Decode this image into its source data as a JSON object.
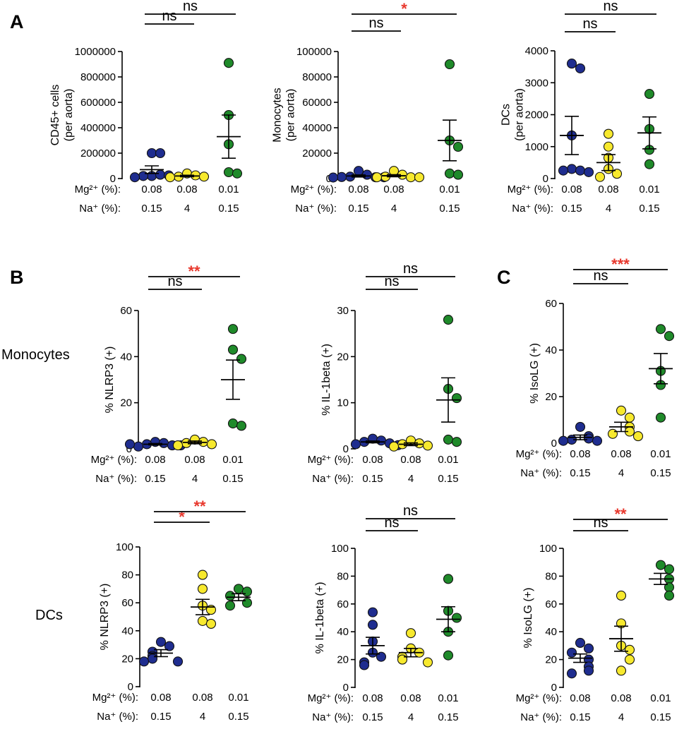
{
  "figure": {
    "panel_letters": [
      "A",
      "B",
      "C"
    ],
    "row_labels": [
      "Monocytes",
      "DCs"
    ]
  },
  "styles": {
    "group_colors": [
      "#1f2d8f",
      "#f7e92e",
      "#1f8a2a"
    ],
    "sig_color": "#e8382d",
    "ns_color": "#000000",
    "axis_color": "#000000"
  },
  "conditions": {
    "mg_label": "Mg²⁺ (%):",
    "na_label": "Na⁺ (%):",
    "mg_values": [
      "0.08",
      "0.08",
      "0.01"
    ],
    "na_values": [
      "0.15",
      "4",
      "0.15"
    ]
  },
  "chart_data": [
    {
      "type": "scatter",
      "panel": "A",
      "ylabel": "CD45+ cells\n(per aorta)",
      "ylim": [
        0,
        1000000
      ],
      "yticks": [
        0,
        200000,
        400000,
        600000,
        800000,
        1000000
      ],
      "ytick_labels": [
        "0",
        "200000",
        "400000",
        "600000",
        "800000",
        "1000000"
      ],
      "groups": [
        {
          "values": [
            200000,
            200000,
            20000,
            30000,
            20000,
            25000,
            10000
          ],
          "mean": 70000,
          "sem": 30000
        },
        {
          "values": [
            40000,
            25000,
            15000,
            15000,
            10000
          ],
          "mean": 20000,
          "sem": 6000
        },
        {
          "values": [
            910000,
            500000,
            270000,
            50000,
            40000
          ],
          "mean": 330000,
          "sem": 170000
        }
      ],
      "comparisons": [
        {
          "pair": [
            0,
            1
          ],
          "label": "ns",
          "significant": false
        },
        {
          "pair": [
            0,
            2
          ],
          "label": "ns",
          "significant": false
        }
      ]
    },
    {
      "type": "scatter",
      "panel": "A",
      "ylabel": "Monocytes\n(per aorta)",
      "ylim": [
        0,
        100000
      ],
      "yticks": [
        0,
        20000,
        40000,
        60000,
        80000,
        100000
      ],
      "ytick_labels": [
        "0",
        "20000",
        "40000",
        "60000",
        "80000",
        "100000"
      ],
      "groups": [
        {
          "values": [
            6000,
            3000,
            1500,
            1000,
            1200,
            1000,
            800
          ],
          "mean": 2000,
          "sem": 800
        },
        {
          "values": [
            6000,
            3000,
            1500,
            1000,
            1000,
            1000
          ],
          "mean": 2200,
          "sem": 800
        },
        {
          "values": [
            90000,
            30000,
            25000,
            4000,
            3000
          ],
          "mean": 30000,
          "sem": 16000
        }
      ],
      "comparisons": [
        {
          "pair": [
            0,
            1
          ],
          "label": "ns",
          "significant": false
        },
        {
          "pair": [
            0,
            2
          ],
          "label": "*",
          "significant": true
        }
      ]
    },
    {
      "type": "scatter",
      "panel": "A",
      "ylabel": "DCs\n(per aorta)",
      "ylim": [
        0,
        4000
      ],
      "yticks": [
        0,
        1000,
        2000,
        3000,
        4000
      ],
      "ytick_labels": [
        "0",
        "1000",
        "2000",
        "3000",
        "4000"
      ],
      "groups": [
        {
          "values": [
            3600,
            3450,
            1350,
            300,
            250,
            250,
            200
          ],
          "mean": 1350,
          "sem": 600
        },
        {
          "values": [
            1400,
            1000,
            650,
            300,
            150,
            50
          ],
          "mean": 500,
          "sem": 250
        },
        {
          "values": [
            2650,
            1550,
            900,
            450
          ],
          "mean": 1430,
          "sem": 500
        }
      ],
      "comparisons": [
        {
          "pair": [
            0,
            1
          ],
          "label": "ns",
          "significant": false
        },
        {
          "pair": [
            0,
            2
          ],
          "label": "ns",
          "significant": false
        }
      ]
    },
    {
      "type": "scatter",
      "panel": "B",
      "ylabel": "% NLRP3 (+)",
      "ylim": [
        0,
        60
      ],
      "yticks": [
        0,
        20,
        40,
        60
      ],
      "ytick_labels": [
        "0",
        "20",
        "40",
        "60"
      ],
      "groups": [
        {
          "values": [
            3,
            2.5,
            2,
            1.5,
            1,
            1.5,
            2
          ],
          "mean": 2,
          "sem": 0.3
        },
        {
          "values": [
            4,
            3,
            2.5,
            2,
            1.5
          ],
          "mean": 2.8,
          "sem": 0.6
        },
        {
          "values": [
            52,
            43,
            39,
            11,
            10
          ],
          "mean": 30,
          "sem": 8.5
        }
      ],
      "comparisons": [
        {
          "pair": [
            0,
            1
          ],
          "label": "ns",
          "significant": false
        },
        {
          "pair": [
            0,
            2
          ],
          "label": "**",
          "significant": true
        }
      ]
    },
    {
      "type": "scatter",
      "panel": "B",
      "ylabel": "% IL-1beta (+)",
      "ylim": [
        0,
        30
      ],
      "yticks": [
        0,
        10,
        20,
        30
      ],
      "ytick_labels": [
        "0",
        "10",
        "20",
        "30"
      ],
      "groups": [
        {
          "values": [
            2.2,
            1.8,
            1.5,
            1.2,
            1,
            0.8
          ],
          "mean": 1.5,
          "sem": 0.2
        },
        {
          "values": [
            1.8,
            1.2,
            1,
            0.7,
            0.5
          ],
          "mean": 1,
          "sem": 0.3
        },
        {
          "values": [
            28,
            13,
            11,
            2,
            1.5
          ],
          "mean": 10.6,
          "sem": 4.8
        }
      ],
      "comparisons": [
        {
          "pair": [
            0,
            1
          ],
          "label": "ns",
          "significant": false
        },
        {
          "pair": [
            0,
            2
          ],
          "label": "ns",
          "significant": false
        }
      ]
    },
    {
      "type": "scatter",
      "panel": "C",
      "ylabel": "% IsoLG (+)",
      "ylim": [
        0,
        60
      ],
      "yticks": [
        0,
        20,
        40,
        60
      ],
      "ytick_labels": [
        "0",
        "20",
        "40",
        "60"
      ],
      "groups": [
        {
          "values": [
            7,
            3,
            2,
            1.5,
            1,
            1
          ],
          "mean": 2.5,
          "sem": 1
        },
        {
          "values": [
            14,
            11,
            7,
            5,
            4,
            3
          ],
          "mean": 7,
          "sem": 2
        },
        {
          "values": [
            49,
            46,
            31,
            25,
            11
          ],
          "mean": 32,
          "sem": 6.5
        }
      ],
      "comparisons": [
        {
          "pair": [
            0,
            1
          ],
          "label": "ns",
          "significant": false
        },
        {
          "pair": [
            0,
            2
          ],
          "label": "***",
          "significant": true
        }
      ]
    },
    {
      "type": "scatter",
      "panel": "B",
      "ylabel": "% NLRP3 (+)",
      "ylim": [
        0,
        100
      ],
      "yticks": [
        0,
        20,
        40,
        60,
        80,
        100
      ],
      "ytick_labels": [
        "0",
        "20",
        "40",
        "60",
        "80",
        "100"
      ],
      "groups": [
        {
          "values": [
            32,
            29,
            25,
            22,
            20,
            18,
            18
          ],
          "mean": 24,
          "sem": 2.5
        },
        {
          "values": [
            80,
            70,
            58,
            55,
            47,
            45
          ],
          "mean": 57,
          "sem": 5.5
        },
        {
          "values": [
            70,
            68,
            65,
            60,
            58
          ],
          "mean": 64,
          "sem": 2.5
        }
      ],
      "comparisons": [
        {
          "pair": [
            0,
            1
          ],
          "label": "*",
          "significant": true
        },
        {
          "pair": [
            0,
            2
          ],
          "label": "**",
          "significant": true
        }
      ]
    },
    {
      "type": "scatter",
      "panel": "B",
      "ylabel": "% IL-1beta (+)",
      "ylim": [
        0,
        100
      ],
      "yticks": [
        0,
        20,
        40,
        60,
        80,
        100
      ],
      "ytick_labels": [
        "0",
        "20",
        "40",
        "60",
        "80",
        "100"
      ],
      "groups": [
        {
          "values": [
            54,
            45,
            33,
            25,
            22,
            18,
            16
          ],
          "mean": 30,
          "sem": 6
        },
        {
          "values": [
            39,
            28,
            25,
            22,
            20,
            18
          ],
          "mean": 25,
          "sem": 3
        },
        {
          "values": [
            78,
            55,
            50,
            40,
            23
          ],
          "mean": 49,
          "sem": 9
        }
      ],
      "comparisons": [
        {
          "pair": [
            0,
            1
          ],
          "label": "ns",
          "significant": false
        },
        {
          "pair": [
            0,
            2
          ],
          "label": "ns",
          "significant": false
        }
      ]
    },
    {
      "type": "scatter",
      "panel": "C",
      "ylabel": "% IsoLG (+)",
      "ylim": [
        0,
        100
      ],
      "yticks": [
        0,
        20,
        40,
        60,
        80,
        100
      ],
      "ytick_labels": [
        "0",
        "20",
        "40",
        "60",
        "80",
        "100"
      ],
      "groups": [
        {
          "values": [
            32,
            28,
            25,
            20,
            15,
            12,
            10
          ],
          "mean": 21,
          "sem": 3
        },
        {
          "values": [
            66,
            46,
            30,
            27,
            20,
            12
          ],
          "mean": 35,
          "sem": 9
        },
        {
          "values": [
            88,
            85,
            78,
            72,
            66
          ],
          "mean": 78,
          "sem": 4
        }
      ],
      "comparisons": [
        {
          "pair": [
            0,
            1
          ],
          "label": "ns",
          "significant": false
        },
        {
          "pair": [
            0,
            2
          ],
          "label": "**",
          "significant": true
        }
      ]
    }
  ]
}
